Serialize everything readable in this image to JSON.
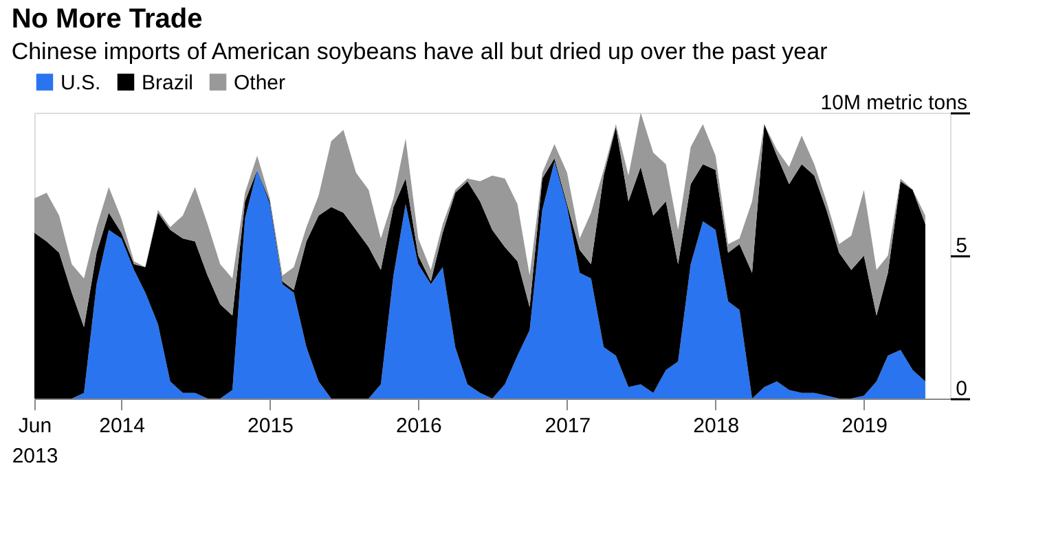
{
  "chart_data": {
    "type": "area",
    "stacked": true,
    "title": "No More Trade",
    "subtitle": "Chinese imports of American soybeans have all but dried up over the past year",
    "x": [
      "2013-06",
      "2013-07",
      "2013-08",
      "2013-09",
      "2013-10",
      "2013-11",
      "2013-12",
      "2014-01",
      "2014-02",
      "2014-03",
      "2014-04",
      "2014-05",
      "2014-06",
      "2014-07",
      "2014-08",
      "2014-09",
      "2014-10",
      "2014-11",
      "2014-12",
      "2015-01",
      "2015-02",
      "2015-03",
      "2015-04",
      "2015-05",
      "2015-06",
      "2015-07",
      "2015-08",
      "2015-09",
      "2015-10",
      "2015-11",
      "2015-12",
      "2016-01",
      "2016-02",
      "2016-03",
      "2016-04",
      "2016-05",
      "2016-06",
      "2016-07",
      "2016-08",
      "2016-09",
      "2016-10",
      "2016-11",
      "2016-12",
      "2017-01",
      "2017-02",
      "2017-03",
      "2017-04",
      "2017-05",
      "2017-06",
      "2017-07",
      "2017-08",
      "2017-09",
      "2017-10",
      "2017-11",
      "2017-12",
      "2018-01",
      "2018-02",
      "2018-03",
      "2018-04",
      "2018-05",
      "2018-06",
      "2018-07",
      "2018-08",
      "2018-09",
      "2018-10",
      "2018-11",
      "2018-12",
      "2019-01",
      "2019-02",
      "2019-03",
      "2019-04",
      "2019-05",
      "2019-06"
    ],
    "series": [
      {
        "name": "U.S.",
        "color": "#2a74f0",
        "values": [
          0,
          0,
          0,
          0,
          0.2,
          4.0,
          5.9,
          5.6,
          4.5,
          3.7,
          2.6,
          0.6,
          0.2,
          0.2,
          0,
          0,
          0.3,
          6.3,
          8.0,
          6.8,
          4.0,
          3.7,
          1.8,
          0.6,
          0,
          0,
          0,
          0,
          0.5,
          4.3,
          6.8,
          4.7,
          4.0,
          4.6,
          1.8,
          0.5,
          0.2,
          0,
          0.5,
          1.5,
          2.4,
          6.6,
          8.3,
          6.7,
          4.4,
          4.2,
          1.8,
          1.5,
          0.4,
          0.5,
          0.2,
          1.0,
          1.3,
          4.7,
          6.2,
          5.9,
          3.4,
          3.1,
          0,
          0.4,
          0.6,
          0.3,
          0.2,
          0.2,
          0.1,
          0,
          0,
          0.1,
          0.6,
          1.5,
          1.7,
          1.0,
          0.6
        ]
      },
      {
        "name": "Brazil",
        "color": "#000000",
        "values": [
          5.8,
          5.5,
          5.1,
          3.7,
          2.3,
          1.1,
          0.6,
          0.2,
          0.2,
          0.9,
          3.9,
          5.3,
          5.4,
          5.3,
          4.3,
          3.3,
          2.6,
          0.6,
          0.0,
          0.1,
          0.1,
          0.1,
          3.7,
          5.8,
          6.7,
          6.5,
          5.9,
          5.3,
          4.0,
          2.4,
          0.9,
          0.3,
          0.1,
          1.2,
          5.4,
          7.1,
          6.7,
          5.9,
          4.8,
          3.3,
          0.8,
          1.1,
          0.1,
          0.1,
          0.8,
          0.5,
          6.0,
          8.0,
          6.5,
          7.6,
          6.2,
          5.9,
          3.4,
          2.8,
          2.0,
          2.1,
          1.7,
          2.3,
          4.4,
          9.2,
          7.9,
          7.2,
          8.0,
          7.6,
          6.5,
          5.1,
          4.5,
          4.9,
          2.3,
          2.9,
          5.9,
          6.3,
          5.5
        ]
      },
      {
        "name": "Other",
        "color": "#999999",
        "values": [
          1.2,
          1.7,
          1.3,
          1.0,
          1.7,
          0.9,
          0.9,
          0.5,
          0.1,
          0.0,
          0.1,
          0.1,
          0.8,
          1.9,
          1.8,
          1.4,
          1.3,
          0.3,
          0.5,
          0.1,
          0.2,
          0.8,
          0.5,
          0.7,
          2.3,
          2.9,
          2.0,
          2.0,
          1.1,
          0.3,
          1.4,
          0.6,
          0.4,
          0.3,
          0.1,
          0.1,
          0.7,
          1.9,
          2.4,
          2.0,
          1.1,
          0.2,
          0.5,
          1.1,
          0.4,
          1.8,
          0.2,
          0.1,
          0.9,
          1.9,
          2.2,
          1.3,
          1.2,
          1.3,
          1.4,
          0.5,
          0.3,
          0.2,
          2.5,
          0.0,
          0.2,
          0.6,
          1.0,
          0.4,
          0.3,
          0.3,
          1.2,
          2.3,
          1.6,
          0.6,
          0.1,
          0.0,
          0.3
        ]
      }
    ],
    "xlim": [
      "2013-06",
      "2019-08"
    ],
    "xticks": [
      {
        "value": "2013-06",
        "label": "Jun 2013"
      },
      "2014",
      "2015",
      "2016",
      "2017",
      "2018",
      "2019"
    ],
    "ylim": [
      0,
      10
    ],
    "yticks": [
      0,
      5,
      {
        "value": 10,
        "label": "10M metric tons"
      }
    ],
    "grid": false,
    "legend": "top left"
  }
}
